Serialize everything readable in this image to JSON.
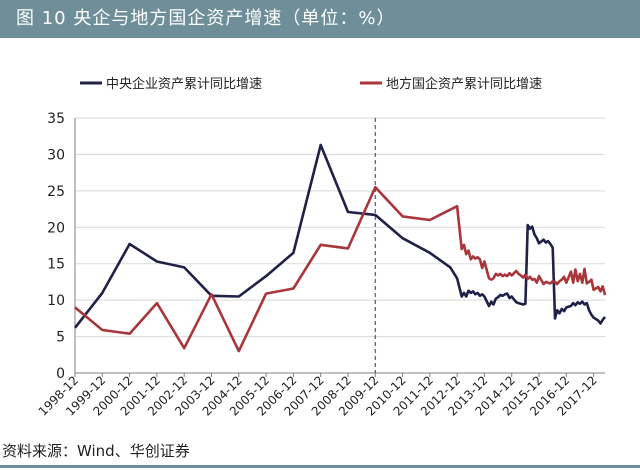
{
  "header": {
    "title": "图 10  央企与地方国企资产增速（单位：%）"
  },
  "footer": {
    "source": "资料来源：Wind、华创证券"
  },
  "colors": {
    "header_bg": "#6e8f99",
    "central": "#1f2147",
    "local": "#a8363a",
    "grid": "#d9d9d9",
    "marker": "#2a2f8a"
  },
  "chart_data": {
    "type": "line",
    "title": "",
    "xlabel": "",
    "ylabel": "",
    "ylim": [
      0,
      35
    ],
    "yticks": [
      0,
      5,
      10,
      15,
      20,
      25,
      30,
      35
    ],
    "grid": true,
    "legend_position": "top",
    "x_tick_labels": [
      "1998-12",
      "1999-12",
      "2000-12",
      "2001-12",
      "2002-12",
      "2003-12",
      "2004-12",
      "2005-12",
      "2006-12",
      "2007-12",
      "2008-12",
      "2009-12",
      "2010-12",
      "2011-12",
      "2012-12",
      "2013-12",
      "2014-12",
      "2015-12",
      "2016-12",
      "2017-12"
    ],
    "x_range": [
      "1998-12",
      "2018-05"
    ],
    "annotations": [
      {
        "type": "vertical-dashed-line",
        "x": "2009-12"
      }
    ],
    "series": [
      {
        "name": "中央企业资产累计同比增速",
        "color": "#1f2147",
        "points": [
          [
            "1998-12",
            6.2
          ],
          [
            "1999-12",
            11
          ],
          [
            "2000-12",
            17.7
          ],
          [
            "2001-12",
            15.3
          ],
          [
            "2002-12",
            14.5
          ],
          [
            "2003-12",
            10.6
          ],
          [
            "2004-12",
            10.5
          ],
          [
            "2005-12",
            13.3
          ],
          [
            "2006-12",
            16.5
          ],
          [
            "2007-12",
            31.3
          ],
          [
            "2008-12",
            22.1
          ],
          [
            "2009-12",
            21.7
          ],
          [
            "2010-12",
            18.5
          ],
          [
            "2011-12",
            16.5
          ],
          [
            "2012-09",
            14.5
          ],
          [
            "2012-12",
            13
          ],
          [
            "2013-02",
            10.5
          ],
          [
            "2013-03",
            11
          ],
          [
            "2013-04",
            10.5
          ],
          [
            "2013-05",
            11.3
          ],
          [
            "2013-06",
            11
          ],
          [
            "2013-07",
            11.2
          ],
          [
            "2013-08",
            10.8
          ],
          [
            "2013-09",
            11
          ],
          [
            "2013-10",
            10.6
          ],
          [
            "2013-11",
            10.8
          ],
          [
            "2013-12",
            10.5
          ],
          [
            "2014-02",
            9.2
          ],
          [
            "2014-03",
            9.8
          ],
          [
            "2014-04",
            9.4
          ],
          [
            "2014-05",
            10.2
          ],
          [
            "2014-06",
            10.4
          ],
          [
            "2014-07",
            10.7
          ],
          [
            "2014-08",
            10.6
          ],
          [
            "2014-09",
            10.8
          ],
          [
            "2014-10",
            10.9
          ],
          [
            "2014-11",
            10.3
          ],
          [
            "2014-12",
            10.5
          ],
          [
            "2015-02",
            9.7
          ],
          [
            "2015-03",
            9.6
          ],
          [
            "2015-04",
            9.5
          ],
          [
            "2015-05",
            9.4
          ],
          [
            "2015-06",
            9.5
          ],
          [
            "2015-07",
            20.3
          ],
          [
            "2015-08",
            19.8
          ],
          [
            "2015-09",
            20.1
          ],
          [
            "2015-10",
            19
          ],
          [
            "2015-11",
            18.5
          ],
          [
            "2015-12",
            17.8
          ],
          [
            "2016-02",
            18.3
          ],
          [
            "2016-03",
            17.9
          ],
          [
            "2016-04",
            18.1
          ],
          [
            "2016-05",
            17.7
          ],
          [
            "2016-06",
            17.2
          ],
          [
            "2016-07",
            7.5
          ],
          [
            "2016-08",
            8.6
          ],
          [
            "2016-09",
            8.2
          ],
          [
            "2016-10",
            8.8
          ],
          [
            "2016-11",
            8.5
          ],
          [
            "2016-12",
            9
          ],
          [
            "2017-02",
            9.2
          ],
          [
            "2017-03",
            9.6
          ],
          [
            "2017-04",
            9.3
          ],
          [
            "2017-05",
            9.7
          ],
          [
            "2017-06",
            9.5
          ],
          [
            "2017-07",
            9.8
          ],
          [
            "2017-08",
            9.4
          ],
          [
            "2017-09",
            9.6
          ],
          [
            "2017-10",
            8.6
          ],
          [
            "2017-11",
            8
          ],
          [
            "2017-12",
            7.6
          ],
          [
            "2018-02",
            7.2
          ],
          [
            "2018-03",
            6.8
          ],
          [
            "2018-04",
            7.3
          ],
          [
            "2018-05",
            7.7
          ]
        ]
      },
      {
        "name": "地方国企资产累计同比增速",
        "color": "#a8363a",
        "points": [
          [
            "1998-12",
            9
          ],
          [
            "1999-12",
            5.9
          ],
          [
            "2000-12",
            5.4
          ],
          [
            "2001-12",
            9.6
          ],
          [
            "2002-12",
            3.4
          ],
          [
            "2003-12",
            10.8
          ],
          [
            "2004-12",
            3
          ],
          [
            "2005-12",
            10.9
          ],
          [
            "2006-12",
            11.6
          ],
          [
            "2007-12",
            17.6
          ],
          [
            "2008-12",
            17.1
          ],
          [
            "2009-12",
            25.5
          ],
          [
            "2010-12",
            21.5
          ],
          [
            "2011-12",
            21
          ],
          [
            "2012-12",
            22.9
          ],
          [
            "2013-02",
            17
          ],
          [
            "2013-03",
            17.6
          ],
          [
            "2013-04",
            16.3
          ],
          [
            "2013-05",
            16.8
          ],
          [
            "2013-06",
            15.6
          ],
          [
            "2013-07",
            16
          ],
          [
            "2013-08",
            15.7
          ],
          [
            "2013-09",
            15.9
          ],
          [
            "2013-10",
            15.6
          ],
          [
            "2013-11",
            14.4
          ],
          [
            "2013-12",
            15.3
          ],
          [
            "2014-02",
            13
          ],
          [
            "2014-03",
            12.8
          ],
          [
            "2014-04",
            13
          ],
          [
            "2014-05",
            13.6
          ],
          [
            "2014-06",
            13.4
          ],
          [
            "2014-07",
            13.6
          ],
          [
            "2014-08",
            13.3
          ],
          [
            "2014-09",
            13.5
          ],
          [
            "2014-10",
            13.3
          ],
          [
            "2014-11",
            13.7
          ],
          [
            "2014-12",
            13.4
          ],
          [
            "2015-02",
            14
          ],
          [
            "2015-03",
            13.6
          ],
          [
            "2015-04",
            13.4
          ],
          [
            "2015-05",
            13.1
          ],
          [
            "2015-06",
            13.5
          ],
          [
            "2015-07",
            12.9
          ],
          [
            "2015-08",
            13.2
          ],
          [
            "2015-09",
            12.8
          ],
          [
            "2015-10",
            12.9
          ],
          [
            "2015-11",
            12.4
          ],
          [
            "2015-12",
            13.3
          ],
          [
            "2016-02",
            12.2
          ],
          [
            "2016-03",
            12.5
          ],
          [
            "2016-04",
            12.4
          ],
          [
            "2016-05",
            12.3
          ],
          [
            "2016-06",
            12.6
          ],
          [
            "2016-07",
            12.5
          ],
          [
            "2016-08",
            12.2
          ],
          [
            "2016-09",
            12.6
          ],
          [
            "2016-10",
            12.8
          ],
          [
            "2016-11",
            13.2
          ],
          [
            "2016-12",
            12.4
          ],
          [
            "2017-02",
            13.9
          ],
          [
            "2017-03",
            12.4
          ],
          [
            "2017-04",
            14.2
          ],
          [
            "2017-05",
            12.6
          ],
          [
            "2017-06",
            13.6
          ],
          [
            "2017-07",
            12.4
          ],
          [
            "2017-08",
            14.3
          ],
          [
            "2017-09",
            12.3
          ],
          [
            "2017-10",
            12.5
          ],
          [
            "2017-11",
            12.8
          ],
          [
            "2017-12",
            11.4
          ],
          [
            "2018-02",
            11.8
          ],
          [
            "2018-03",
            11.2
          ],
          [
            "2018-04",
            11.9
          ],
          [
            "2018-05",
            10.7
          ]
        ]
      }
    ]
  }
}
